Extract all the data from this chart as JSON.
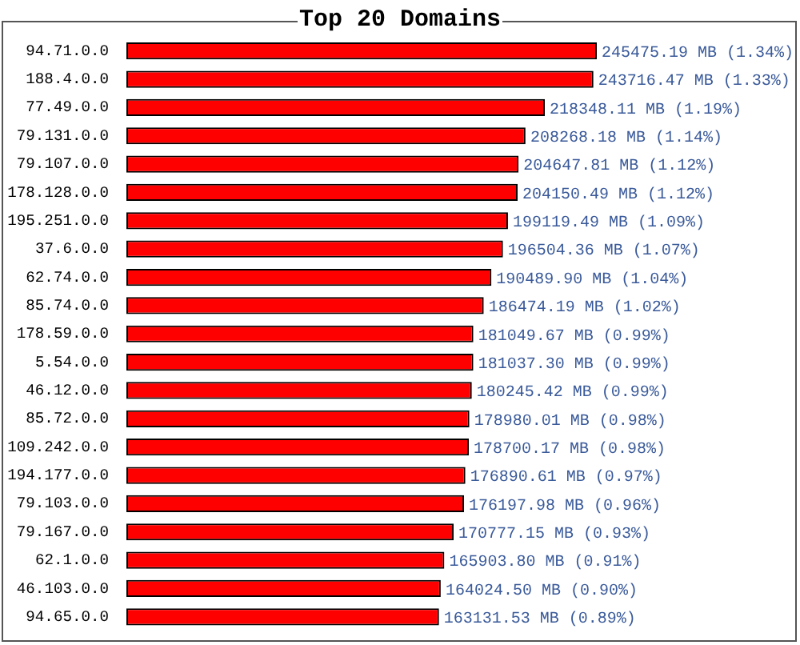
{
  "chart_data": {
    "type": "bar",
    "orientation": "horizontal",
    "title": "Top 20 Domains",
    "categories": [
      "94.71.0.0",
      "188.4.0.0",
      "77.49.0.0",
      "79.131.0.0",
      "79.107.0.0",
      "178.128.0.0",
      "195.251.0.0",
      "37.6.0.0",
      "62.74.0.0",
      "85.74.0.0",
      "178.59.0.0",
      "5.54.0.0",
      "46.12.0.0",
      "85.72.0.0",
      "109.242.0.0",
      "194.177.0.0",
      "79.103.0.0",
      "79.167.0.0",
      "62.1.0.0",
      "46.103.0.0",
      "94.65.0.0"
    ],
    "values": [
      245475.19,
      243716.47,
      218348.11,
      208268.18,
      204647.81,
      204150.49,
      199119.49,
      196504.36,
      190489.9,
      186474.19,
      181049.67,
      181037.3,
      180245.42,
      178980.01,
      178700.17,
      176890.61,
      176197.98,
      170777.15,
      165903.8,
      164024.5,
      163131.53
    ],
    "value_labels": [
      "245475.19 MB (1.34%)",
      "243716.47 MB (1.33%)",
      "218348.11 MB (1.19%)",
      "208268.18 MB (1.14%)",
      "204647.81 MB (1.12%)",
      "204150.49 MB (1.12%)",
      "199119.49 MB (1.09%)",
      "196504.36 MB (1.07%)",
      "190489.90 MB (1.04%)",
      "186474.19 MB (1.02%)",
      "181049.67 MB (0.99%)",
      "181037.30 MB (0.99%)",
      "180245.42 MB (0.99%)",
      "178980.01 MB (0.98%)",
      "178700.17 MB (0.98%)",
      "176890.61 MB (0.97%)",
      "176197.98 MB (0.96%)",
      "170777.15 MB (0.93%)",
      "165903.80 MB (0.91%)",
      "164024.50 MB (0.90%)",
      "163131.53 MB (0.89%)"
    ],
    "color": "#ff0000",
    "grid": false,
    "legend": false
  }
}
